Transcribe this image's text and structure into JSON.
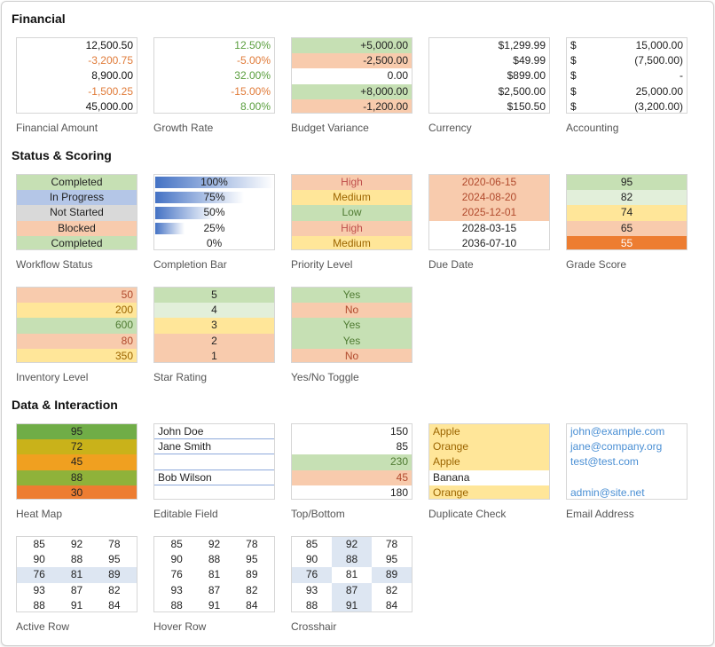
{
  "sections": {
    "financial": "Financial",
    "status": "Status & Scoring",
    "data": "Data & Interaction"
  },
  "financial_amount": {
    "caption": "Financial Amount",
    "values": [
      "12,500.50",
      "-3,200.75",
      "8,900.00",
      "-1,500.25",
      "45,000.00"
    ]
  },
  "growth_rate": {
    "caption": "Growth Rate",
    "values": [
      "12.50%",
      "-5.00%",
      "32.00%",
      "-15.00%",
      "8.00%"
    ]
  },
  "budget_variance": {
    "caption": "Budget Variance",
    "values": [
      "+5,000.00",
      "-2,500.00",
      "0.00",
      "+8,000.00",
      "-1,200.00"
    ]
  },
  "currency": {
    "caption": "Currency",
    "values": [
      "$1,299.99",
      "$49.99",
      "$899.00",
      "$2,500.00",
      "$150.50"
    ]
  },
  "accounting": {
    "caption": "Accounting",
    "symbol": "$",
    "values": [
      "15,000.00",
      "(7,500.00)",
      "-",
      "25,000.00",
      "(3,200.00)"
    ]
  },
  "workflow_status": {
    "caption": "Workflow Status",
    "values": [
      "Completed",
      "In Progress",
      "Not Started",
      "Blocked",
      "Completed"
    ]
  },
  "completion_bar": {
    "caption": "Completion Bar",
    "values": [
      "100%",
      "75%",
      "50%",
      "25%",
      "0%"
    ],
    "fractions": [
      1.0,
      0.75,
      0.5,
      0.25,
      0.0
    ]
  },
  "priority_level": {
    "caption": "Priority Level",
    "values": [
      "High",
      "Medium",
      "Low",
      "High",
      "Medium"
    ]
  },
  "due_date": {
    "caption": "Due Date",
    "values": [
      "2020-06-15",
      "2024-08-20",
      "2025-12-01",
      "2028-03-15",
      "2036-07-10"
    ]
  },
  "grade_score": {
    "caption": "Grade Score",
    "values": [
      "95",
      "82",
      "74",
      "65",
      "55"
    ]
  },
  "inventory_level": {
    "caption": "Inventory Level",
    "values": [
      "50",
      "200",
      "600",
      "80",
      "350"
    ]
  },
  "star_rating": {
    "caption": "Star Rating",
    "values": [
      "5",
      "4",
      "3",
      "2",
      "1"
    ]
  },
  "yes_no_toggle": {
    "caption": "Yes/No Toggle",
    "values": [
      "Yes",
      "No",
      "Yes",
      "Yes",
      "No"
    ]
  },
  "heat_map": {
    "caption": "Heat Map",
    "values": [
      "95",
      "72",
      "45",
      "88",
      "30"
    ]
  },
  "editable_field": {
    "caption": "Editable Field",
    "values": [
      "John Doe",
      "Jane Smith",
      "",
      "Bob Wilson",
      ""
    ]
  },
  "top_bottom": {
    "caption": "Top/Bottom",
    "values": [
      "150",
      "85",
      "230",
      "45",
      "180"
    ]
  },
  "duplicate_check": {
    "caption": "Duplicate Check",
    "values": [
      "Apple",
      "Orange",
      "Apple",
      "Banana",
      "Orange"
    ]
  },
  "email_address": {
    "caption": "Email Address",
    "values": [
      "john@example.com",
      "jane@company.org",
      "test@test.com",
      "",
      "admin@site.net"
    ]
  },
  "active_row": {
    "caption": "Active Row",
    "rows": [
      [
        "85",
        "92",
        "78"
      ],
      [
        "90",
        "88",
        "95"
      ],
      [
        "76",
        "81",
        "89"
      ],
      [
        "93",
        "87",
        "82"
      ],
      [
        "88",
        "91",
        "84"
      ]
    ]
  },
  "hover_row": {
    "caption": "Hover Row",
    "rows": [
      [
        "85",
        "92",
        "78"
      ],
      [
        "90",
        "88",
        "95"
      ],
      [
        "76",
        "81",
        "89"
      ],
      [
        "93",
        "87",
        "82"
      ],
      [
        "88",
        "91",
        "84"
      ]
    ]
  },
  "crosshair": {
    "caption": "Crosshair",
    "rows": [
      [
        "85",
        "92",
        "78"
      ],
      [
        "90",
        "88",
        "95"
      ],
      [
        "76",
        "81",
        "89"
      ],
      [
        "93",
        "87",
        "82"
      ],
      [
        "88",
        "91",
        "84"
      ]
    ]
  },
  "colors": {
    "green": "#c6e0b4",
    "peach": "#f8cbad",
    "yellow": "#ffe699",
    "blue": "#b4c6e7",
    "grey": "#d9d9d9",
    "orange": "#ed7d31"
  }
}
